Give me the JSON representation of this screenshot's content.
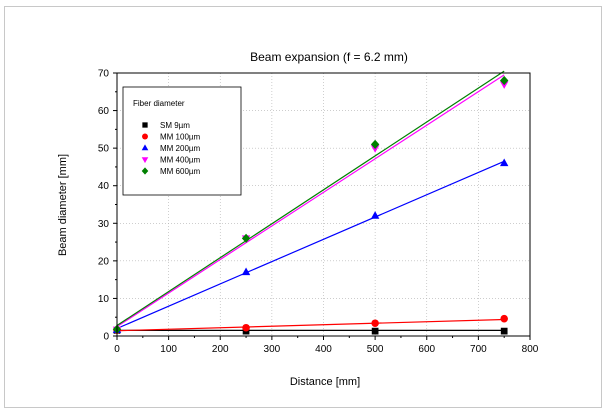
{
  "chart_data": {
    "type": "scatter",
    "title": "Beam expansion  (f = 6.2 mm)",
    "xlabel": "Distance [mm]",
    "ylabel": "Beam diameter [mm]",
    "xlim": [
      0,
      800
    ],
    "ylim": [
      0,
      70
    ],
    "xticks": [
      0,
      100,
      200,
      300,
      400,
      500,
      600,
      700,
      800
    ],
    "yticks": [
      0,
      10,
      20,
      30,
      40,
      50,
      60,
      70
    ],
    "grid": "dotted",
    "legend": {
      "title": "Fiber diameter",
      "placement": "top-left"
    },
    "series": [
      {
        "name": "SM 9µm",
        "marker": "square",
        "color": "#000000",
        "x": [
          0,
          250,
          500,
          750
        ],
        "y": [
          1.5,
          1.3,
          1.3,
          1.3
        ],
        "fit": {
          "x": [
            0,
            750
          ],
          "y": [
            1.5,
            1.5
          ]
        }
      },
      {
        "name": "MM 100µm",
        "marker": "circle",
        "color": "#ff0000",
        "x": [
          0,
          250,
          500,
          750
        ],
        "y": [
          1.6,
          2.2,
          3.4,
          4.6
        ],
        "fit": {
          "x": [
            0,
            750
          ],
          "y": [
            1.4,
            4.4
          ]
        }
      },
      {
        "name": "MM 200µm",
        "marker": "triangle-up",
        "color": "#0000ff",
        "x": [
          0,
          250,
          500,
          750
        ],
        "y": [
          1.6,
          17,
          32,
          46
        ],
        "fit": {
          "x": [
            0,
            750
          ],
          "y": [
            2.0,
            46.5
          ]
        }
      },
      {
        "name": "MM 400µm",
        "marker": "triangle-down",
        "color": "#ff00ff",
        "x": [
          0,
          250,
          500,
          750
        ],
        "y": [
          1.7,
          26,
          50,
          67
        ],
        "fit": {
          "x": [
            0,
            750
          ],
          "y": [
            2.5,
            69.5
          ]
        }
      },
      {
        "name": "MM 600µm",
        "marker": "diamond",
        "color": "#008000",
        "x": [
          0,
          250,
          500,
          750
        ],
        "y": [
          1.8,
          26,
          51,
          68
        ],
        "fit": {
          "x": [
            0,
            750
          ],
          "y": [
            2.8,
            70.5
          ]
        }
      }
    ]
  }
}
